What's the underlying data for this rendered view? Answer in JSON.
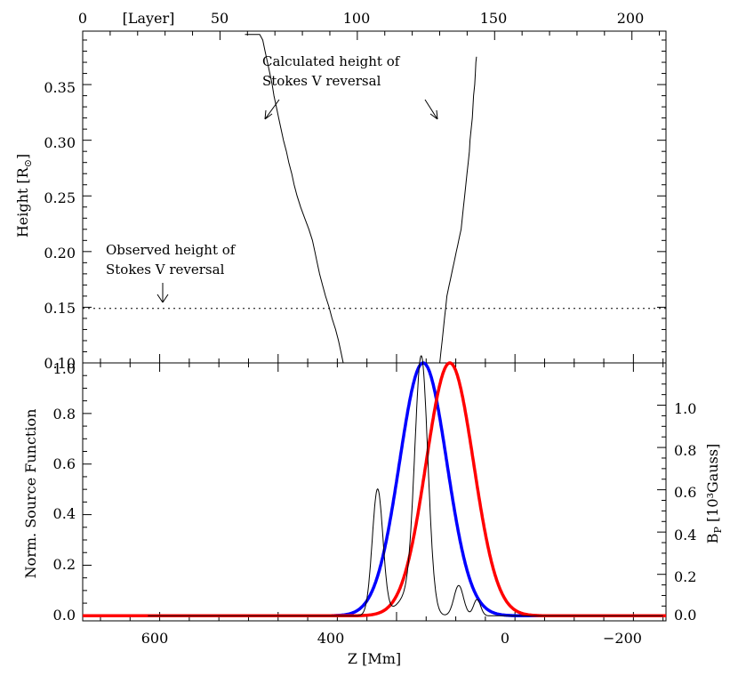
{
  "chart_data": [
    {
      "type": "line",
      "panel": "top",
      "x_axis_bottom": {
        "label": "Z [Mm]",
        "range": [
          730,
          -255
        ],
        "reversed": true
      },
      "x_axis_top": {
        "label": "[Layer]",
        "range": [
          0,
          212
        ],
        "ticks": [
          "0",
          "50",
          "100",
          "150",
          "200"
        ]
      },
      "y_axis": {
        "label": "Height [R⊙]",
        "label_main": "Height [R",
        "label_sub": "⊙",
        "label_close": "]",
        "range": [
          0.1,
          0.398
        ],
        "ticks": [
          "0.10",
          "0.15",
          "0.20",
          "0.25",
          "0.30",
          "0.35"
        ]
      },
      "series": [
        {
          "z": [
            290,
            294,
            298,
            303,
            309,
            314,
            320,
            325,
            330,
            334,
            338,
            342,
            348,
            355,
            362,
            368,
            373,
            377,
            382,
            386,
            391,
            395,
            399,
            403,
            407,
            410,
            414,
            418,
            422,
            426,
            431,
            437,
            444,
            451,
            456
          ],
          "height": [
            0.1,
            0.11,
            0.12,
            0.13,
            0.14,
            0.15,
            0.16,
            0.17,
            0.18,
            0.19,
            0.2,
            0.21,
            0.22,
            0.23,
            0.24,
            0.25,
            0.26,
            0.27,
            0.28,
            0.29,
            0.3,
            0.31,
            0.32,
            0.33,
            0.34,
            0.35,
            0.36,
            0.37,
            0.38,
            0.39,
            0.395,
            0.395,
            0.395,
            0.395,
            0.395
          ]
        },
        {
          "z": [
            127,
            125,
            123,
            121,
            119,
            117,
            115,
            113,
            111,
            109,
            107,
            105,
            103,
            101,
            99,
            97,
            95,
            93,
            91,
            89,
            87,
            85,
            83,
            81,
            79,
            77,
            76,
            74,
            72,
            71,
            70,
            68,
            67,
            66,
            65
          ],
          "height": [
            0.1,
            0.11,
            0.12,
            0.13,
            0.14,
            0.15,
            0.16,
            0.165,
            0.17,
            0.175,
            0.18,
            0.185,
            0.19,
            0.195,
            0.2,
            0.205,
            0.21,
            0.215,
            0.22,
            0.23,
            0.24,
            0.25,
            0.26,
            0.27,
            0.28,
            0.29,
            0.3,
            0.31,
            0.32,
            0.33,
            0.34,
            0.35,
            0.36,
            0.37,
            0.375
          ]
        }
      ],
      "observed_height": 0.15,
      "annotations": [
        {
          "lines": [
            "Calculated height of",
            "Stokes V reversal"
          ]
        },
        {
          "lines": [
            "Observed height of",
            "Stokes V reversal"
          ]
        }
      ]
    },
    {
      "type": "line",
      "panel": "bottom",
      "x_axis": {
        "label": "Z [Mm]",
        "range": [
          730,
          -255
        ],
        "ticks": [
          "600",
          "400",
          "200",
          "0",
          "−200"
        ]
      },
      "y_axis_left": {
        "label": "Norm. Source Function",
        "range": [
          -0.02,
          1.0
        ],
        "ticks": [
          "0.0",
          "0.2",
          "0.4",
          "0.6",
          "0.8",
          "1.0"
        ]
      },
      "y_axis_right": {
        "label": "B_P [10³Gauss]",
        "label_main": "B",
        "label_sub": "P",
        "label_rest": " [10³Gauss]",
        "range": [
          -0.02,
          1.2
        ],
        "ticks": [
          "0.0",
          "0.2",
          "0.4",
          "0.6",
          "0.8",
          "1.0"
        ]
      },
      "series": [
        {
          "color": "#0000ff",
          "center": 155,
          "width": 40,
          "peak": 1.0,
          "zrange": [
            730,
            -255
          ]
        },
        {
          "color": "#ff0000",
          "center": 110,
          "width": 40,
          "peak": 1.0,
          "zrange": [
            730,
            -255
          ]
        },
        {
          "color": "#000000",
          "components": [
            {
              "center": 232,
              "width": 9,
              "amp": 0.5
            },
            {
              "center": 158,
              "width": 11,
              "amp": 0.98
            },
            {
              "center": 178,
              "width": 20,
              "amp": 0.08
            },
            {
              "center": 95,
              "width": 8,
              "amp": 0.12
            },
            {
              "center": 64,
              "width": 6,
              "amp": 0.065
            }
          ],
          "zrange": [
            620,
            -250
          ]
        }
      ]
    }
  ]
}
